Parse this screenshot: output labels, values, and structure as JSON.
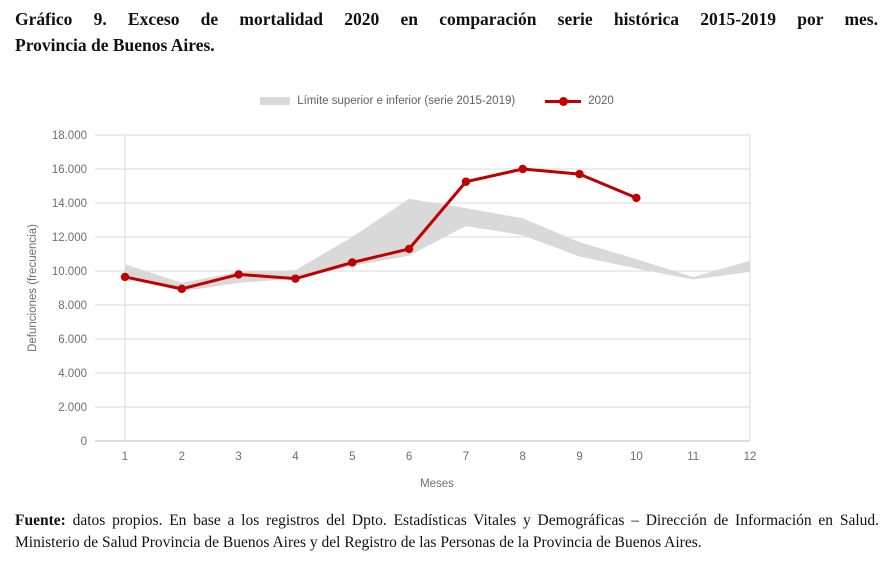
{
  "title": {
    "line1": "Gráfico 9. Exceso de mortalidad 2020 en comparación serie histórica 2015-2019 por mes.",
    "line2": "Provincia de Buenos Aires."
  },
  "legend": {
    "items": [
      {
        "label": "Límite superior e inferior (serie 2015-2019)",
        "swatch": "band",
        "color": "#D9D9D9"
      },
      {
        "label": "2020",
        "swatch": "line-marker",
        "color": "#C00000"
      }
    ]
  },
  "footer": {
    "bold_prefix": "Fuente:",
    "line1_rest": " datos propios. En base a los registros del Dpto. Estadísticas Vitales y Demográficas – Dirección de Información en Salud.",
    "line2": "Ministerio de Salud Provincia de Buenos Aires y del Registro de las Personas de la Provincia de Buenos Aires."
  },
  "chart_data": {
    "type": "line",
    "title": "Gráfico 9. Exceso de mortalidad 2020 en comparación serie histórica 2015-2019 por mes. Provincia de Buenos Aires.",
    "xlabel": "Meses",
    "ylabel": "Defunciones (frecuencia)",
    "x": [
      1,
      2,
      3,
      4,
      5,
      6,
      7,
      8,
      9,
      10,
      11,
      12
    ],
    "ylim": [
      0,
      18000
    ],
    "ytick_step": 2000,
    "ytick_labels": [
      "0",
      "2.000",
      "4.000",
      "6.000",
      "8.000",
      "10.000",
      "12.000",
      "14.000",
      "16.000",
      "18.000"
    ],
    "grid": true,
    "legend_position": "top-center",
    "series": [
      {
        "name": "Límite superior (serie 2015-2019)",
        "role": "band-upper",
        "color": "#D9D9D9",
        "values": [
          10400,
          9300,
          9950,
          10050,
          12000,
          14250,
          13700,
          13100,
          11700,
          10700,
          9650,
          10600
        ]
      },
      {
        "name": "Límite inferior (serie 2015-2019)",
        "role": "band-lower",
        "color": "#D9D9D9",
        "values": [
          9700,
          8800,
          9300,
          9550,
          10300,
          10900,
          12650,
          12100,
          10850,
          10150,
          9500,
          9950
        ]
      },
      {
        "name": "2020",
        "role": "line",
        "color": "#C00000",
        "values": [
          9650,
          8950,
          9800,
          9550,
          10500,
          11300,
          15250,
          16000,
          15700,
          14300,
          null,
          null
        ]
      }
    ],
    "colors": {
      "band": "#D9D9D9",
      "line_2020": "#C00000",
      "grid": "#D9D9D9",
      "axis": "#BDBDBD",
      "tick_text": "#6E6E6E"
    }
  }
}
